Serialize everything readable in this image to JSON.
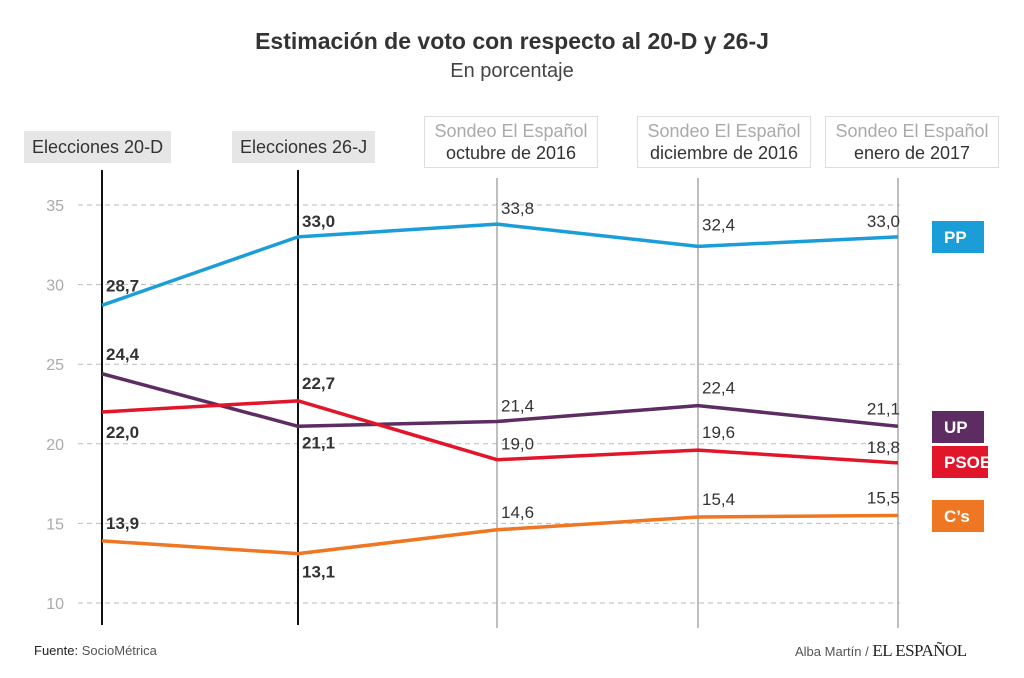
{
  "chart_data": {
    "type": "line",
    "title": "Estimación de voto con respecto al 20-D y 26-J",
    "subtitle": "En porcentaje",
    "categories": [
      {
        "line1": "Elecciones 20-D",
        "line2": ""
      },
      {
        "line1": "Elecciones 26-J",
        "line2": ""
      },
      {
        "line1": "Sondeo El Español",
        "line2": "octubre de 2016"
      },
      {
        "line1": "Sondeo El Español",
        "line2": "diciembre de 2016"
      },
      {
        "line1": "Sondeo El Español",
        "line2": "enero de 2017"
      }
    ],
    "yticks": [
      10,
      15,
      20,
      25,
      30,
      35
    ],
    "ylim": [
      10,
      35
    ],
    "grid": true,
    "legend": "right",
    "series": [
      {
        "name": "PP",
        "color": "#1b9dd7",
        "values": [
          28.7,
          33.0,
          33.8,
          32.4,
          33.0
        ],
        "labels": [
          "28,7",
          "33,0",
          "33,8",
          "32,4",
          "33,0"
        ]
      },
      {
        "name": "UP",
        "color": "#5c2c63",
        "values": [
          24.4,
          21.1,
          21.4,
          22.4,
          21.1
        ],
        "labels": [
          "24,4",
          "21,1",
          "21,4",
          "22,4",
          "21,1"
        ]
      },
      {
        "name": "PSOE",
        "color": "#e1162b",
        "values": [
          22.0,
          22.7,
          19.0,
          19.6,
          18.8
        ],
        "labels": [
          "22,0",
          "22,7",
          "19,0",
          "19,6",
          "18,8"
        ]
      },
      {
        "name": "C’s",
        "color": "#ef7622",
        "values": [
          13.9,
          13.1,
          14.6,
          15.4,
          15.5
        ],
        "labels": [
          "13,9",
          "13,1",
          "14,6",
          "15,4",
          "15,5"
        ]
      }
    ]
  },
  "footer": {
    "source_label": "Fuente:",
    "source": "SocioMétrica",
    "author": "Alba Martín /",
    "brand": "EL ESPAÑOL"
  }
}
